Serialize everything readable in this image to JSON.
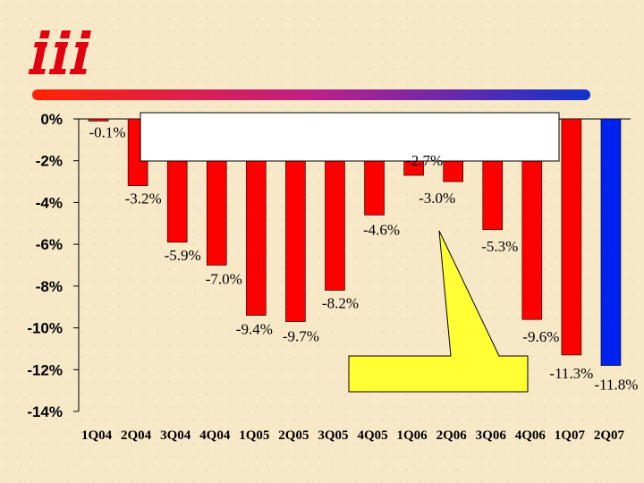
{
  "chart_data": {
    "type": "bar",
    "categories": [
      "1Q04",
      "2Q04",
      "3Q04",
      "4Q04",
      "1Q05",
      "2Q05",
      "3Q05",
      "4Q05",
      "1Q06",
      "2Q06",
      "3Q06",
      "4Q06",
      "1Q07",
      "2Q07"
    ],
    "values": [
      -0.1,
      -3.2,
      -5.9,
      -7.0,
      -9.4,
      -9.7,
      -8.2,
      -4.6,
      -2.7,
      -3.0,
      -5.3,
      -9.6,
      -11.3,
      -11.8
    ],
    "data_labels": [
      "-0.1%",
      "-3.2%",
      "-5.9%",
      "-7.0%",
      "-9.4%",
      "-9.7%",
      "-8.2%",
      "-4.6%",
      "-2.7%",
      "-3.0%",
      "-5.3%",
      "-9.6%",
      "-11.3%",
      "-11.8%"
    ],
    "y_tick_labels": [
      "0%",
      "-2%",
      "-4%",
      "-6%",
      "-8%",
      "-10%",
      "-12%",
      "-14%"
    ],
    "y_ticks": [
      0,
      -2,
      -4,
      -6,
      -8,
      -10,
      -12,
      -14
    ],
    "ylim": [
      -14,
      0
    ],
    "bar_colors": [
      "#ff0000",
      "#ff0000",
      "#ff0000",
      "#ff0000",
      "#ff0000",
      "#ff0000",
      "#ff0000",
      "#ff0000",
      "#ff0000",
      "#ff0000",
      "#ff0000",
      "#ff0000",
      "#ff0000",
      "#0022ee"
    ],
    "grid": false,
    "title": "",
    "xlabel": "",
    "ylabel": ""
  },
  "colors": {
    "bar": "#ff0000",
    "bar_highlight": "#0022ee",
    "callout": "#ffff33",
    "header_line_start": "#ff2200",
    "header_line_end": "#1133cc"
  },
  "logo": "iii-logo"
}
